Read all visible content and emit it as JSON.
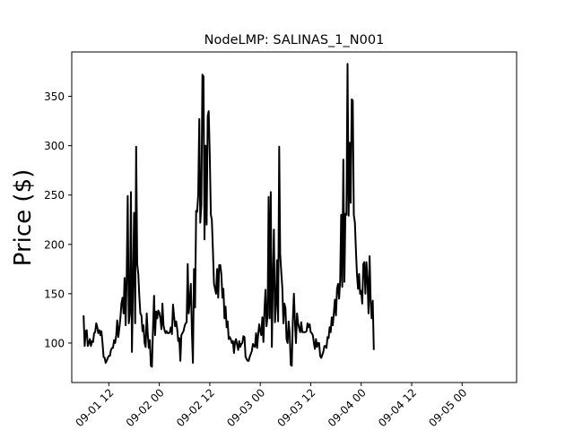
{
  "chart_data": {
    "type": "line",
    "title": "NodeLMP: SALINAS_1_N001",
    "xlabel": "",
    "ylabel": "Price ($)",
    "line_color": "#000000",
    "x_start": "2023-09-01 06:00",
    "x_step_minutes": 15,
    "xlim": [
      "2023-09-01 03:11",
      "2023-09-05 12:57"
    ],
    "ylim": [
      60,
      395
    ],
    "grid": false,
    "legend": "none",
    "y_ticks": [
      100,
      150,
      200,
      250,
      300,
      350
    ],
    "y_tick_labels": [
      "100",
      "150",
      "200",
      "250",
      "300",
      "350"
    ],
    "x_ticks": [
      "2023-09-01 12:00",
      "2023-09-02 00:00",
      "2023-09-02 12:00",
      "2023-09-03 00:00",
      "2023-09-03 12:00",
      "2023-09-04 00:00",
      "2023-09-04 12:00",
      "2023-09-05 00:00"
    ],
    "x_tick_labels": [
      "09-01 12",
      "09-02 00",
      "09-02 12",
      "09-03 00",
      "09-03 12",
      "09-04 00",
      "09-04 12",
      "09-05 00"
    ],
    "values": [
      128,
      97,
      112,
      113,
      97,
      100,
      104,
      97,
      102,
      101,
      110,
      111,
      120,
      116,
      110,
      113,
      108,
      112,
      100,
      86,
      85,
      80,
      82,
      85,
      87,
      87,
      93,
      95,
      95,
      103,
      100,
      108,
      123,
      106,
      115,
      125,
      140,
      146,
      130,
      166,
      118,
      170,
      249,
      120,
      130,
      253,
      91,
      160,
      232,
      120,
      299,
      180,
      170,
      148,
      130,
      128,
      112,
      118,
      100,
      96,
      130,
      110,
      95,
      103,
      77,
      76,
      115,
      148,
      108,
      132,
      125,
      133,
      131,
      125,
      114,
      140,
      118,
      113,
      110,
      112,
      110,
      110,
      111,
      116,
      109,
      139,
      128,
      117,
      122,
      114,
      102,
      105,
      82,
      108,
      110,
      112,
      117,
      120,
      121,
      180,
      130,
      143,
      160,
      110,
      80,
      175,
      136,
      234,
      233,
      250,
      327,
      222,
      240,
      372,
      370,
      205,
      300,
      220,
      330,
      335,
      290,
      230,
      225,
      194,
      160,
      155,
      150,
      175,
      146,
      179,
      179,
      170,
      146,
      155,
      125,
      137,
      116,
      122,
      104,
      106,
      104,
      100,
      102,
      90,
      101,
      104,
      98,
      93,
      102,
      96,
      99,
      100,
      107,
      106,
      86,
      84,
      82,
      82,
      86,
      89,
      92,
      99,
      97,
      96,
      110,
      95,
      108,
      119,
      112,
      108,
      126,
      101,
      134,
      154,
      117,
      128,
      248,
      125,
      253,
      96,
      160,
      215,
      121,
      140,
      184,
      122,
      299,
      190,
      172,
      156,
      120,
      140,
      135,
      104,
      100,
      122,
      110,
      78,
      77,
      123,
      150,
      120,
      100,
      130,
      120,
      115,
      111,
      121,
      111,
      111,
      111,
      111,
      112,
      120,
      116,
      119,
      111,
      110,
      108,
      100,
      94,
      104,
      96,
      100,
      100,
      87,
      85,
      88,
      91,
      97,
      97,
      95,
      106,
      105,
      116,
      111,
      126,
      118,
      130,
      144,
      128,
      155,
      160,
      145,
      164,
      230,
      157,
      286,
      162,
      231,
      230,
      383,
      229,
      303,
      242,
      347,
      346,
      230,
      222,
      193,
      170,
      155,
      170,
      150,
      153,
      140,
      180,
      182,
      150,
      182,
      162,
      130,
      188,
      142,
      125,
      143,
      93
    ]
  }
}
